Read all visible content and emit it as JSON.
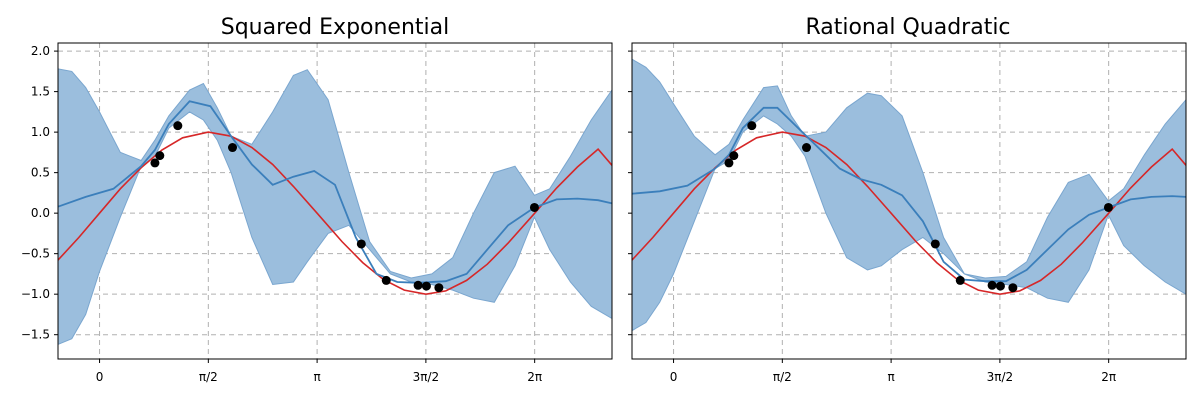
{
  "chart_data": [
    {
      "type": "line",
      "title": "Squared Exponential",
      "x_unit": "radians",
      "xlim": [
        -0.6,
        7.4
      ],
      "ylim": [
        -1.8,
        2.1
      ],
      "xticks": [
        0,
        1.5708,
        3.1416,
        4.7124,
        6.2832
      ],
      "xtick_labels": [
        "0",
        "π/2",
        "π",
        "3π/2",
        "2π"
      ],
      "yticks": [
        -1.5,
        -1.0,
        -0.5,
        0.0,
        0.5,
        1.0,
        1.5,
        2.0
      ],
      "ytick_labels": [
        "−1.5",
        "−1.0",
        "−0.5",
        "0.0",
        "0.5",
        "1.0",
        "1.5",
        "2.0"
      ],
      "grid": true,
      "colors": {
        "true_function": "#d62728",
        "mean": "#3b7fbb",
        "band": "#9bbedd",
        "points": "#000000"
      },
      "true_function": {
        "x": [
          -0.6,
          -0.3,
          0.0,
          0.3,
          0.6,
          0.9,
          1.2,
          1.5708,
          1.9,
          2.2,
          2.5,
          2.8,
          3.1416,
          3.5,
          3.8,
          4.1,
          4.4,
          4.7124,
          5.0,
          5.3,
          5.6,
          5.9,
          6.2832,
          6.6,
          6.9,
          7.2,
          7.4
        ],
        "y": [
          -0.58,
          -0.3,
          0.0,
          0.3,
          0.56,
          0.78,
          0.93,
          1.0,
          0.95,
          0.81,
          0.6,
          0.33,
          0.0,
          -0.35,
          -0.61,
          -0.82,
          -0.95,
          -1.0,
          -0.96,
          -0.83,
          -0.63,
          -0.37,
          0.0,
          0.31,
          0.57,
          0.79,
          0.59
        ]
      },
      "mean": {
        "x": [
          -0.6,
          -0.2,
          0.2,
          0.6,
          0.8,
          1.0,
          1.3,
          1.6,
          1.9,
          2.2,
          2.5,
          2.8,
          3.1,
          3.4,
          3.7,
          4.0,
          4.3,
          4.6,
          5.0,
          5.3,
          5.6,
          5.9,
          6.28,
          6.6,
          6.9,
          7.2,
          7.4
        ],
        "y": [
          0.08,
          0.2,
          0.3,
          0.58,
          0.78,
          1.1,
          1.38,
          1.32,
          0.95,
          0.6,
          0.35,
          0.45,
          0.52,
          0.35,
          -0.3,
          -0.75,
          -0.85,
          -0.86,
          -0.84,
          -0.75,
          -0.45,
          -0.15,
          0.07,
          0.17,
          0.18,
          0.16,
          0.12
        ]
      },
      "band_upper": {
        "x": [
          -0.6,
          -0.4,
          -0.2,
          0.0,
          0.3,
          0.6,
          0.8,
          1.0,
          1.3,
          1.5,
          1.7,
          1.9,
          2.2,
          2.5,
          2.8,
          3.0,
          3.3,
          3.6,
          3.9,
          4.2,
          4.5,
          4.8,
          5.1,
          5.4,
          5.7,
          6.0,
          6.28,
          6.5,
          6.8,
          7.1,
          7.4
        ],
        "y": [
          1.78,
          1.75,
          1.55,
          1.25,
          0.75,
          0.65,
          0.9,
          1.2,
          1.52,
          1.6,
          1.3,
          0.95,
          0.85,
          1.25,
          1.7,
          1.77,
          1.4,
          0.5,
          -0.35,
          -0.72,
          -0.8,
          -0.75,
          -0.55,
          0.0,
          0.5,
          0.58,
          0.22,
          0.3,
          0.7,
          1.15,
          1.52
        ]
      },
      "band_lower": {
        "x": [
          -0.6,
          -0.4,
          -0.2,
          0.0,
          0.3,
          0.6,
          0.8,
          1.0,
          1.3,
          1.5,
          1.7,
          1.9,
          2.2,
          2.5,
          2.8,
          3.0,
          3.3,
          3.6,
          3.9,
          4.2,
          4.5,
          4.8,
          5.1,
          5.4,
          5.7,
          6.0,
          6.28,
          6.5,
          6.8,
          7.1,
          7.4
        ],
        "y": [
          -1.62,
          -1.55,
          -1.25,
          -0.72,
          -0.05,
          0.58,
          0.7,
          1.05,
          1.25,
          1.15,
          0.9,
          0.5,
          -0.3,
          -0.88,
          -0.85,
          -0.6,
          -0.25,
          -0.15,
          -0.45,
          -0.75,
          -0.85,
          -0.88,
          -0.95,
          -1.05,
          -1.1,
          -0.65,
          -0.05,
          -0.45,
          -0.85,
          -1.15,
          -1.3
        ]
      },
      "points": {
        "x": [
          0.8,
          0.87,
          1.13,
          1.92,
          3.78,
          4.14,
          4.6,
          4.72,
          4.9,
          6.28
        ],
        "y": [
          0.62,
          0.71,
          1.08,
          0.81,
          -0.38,
          -0.83,
          -0.89,
          -0.9,
          -0.92,
          0.07
        ]
      }
    },
    {
      "type": "line",
      "title": "Rational Quadratic",
      "x_unit": "radians",
      "xlim": [
        -0.6,
        7.4
      ],
      "ylim": [
        -1.8,
        2.1
      ],
      "xticks": [
        0,
        1.5708,
        3.1416,
        4.7124,
        6.2832
      ],
      "xtick_labels": [
        "0",
        "π/2",
        "π",
        "3π/2",
        "2π"
      ],
      "yticks": [
        -1.5,
        -1.0,
        -0.5,
        0.0,
        0.5,
        1.0,
        1.5,
        2.0
      ],
      "ytick_labels": [],
      "grid": true,
      "colors": {
        "true_function": "#d62728",
        "mean": "#3b7fbb",
        "band": "#9bbedd",
        "points": "#000000"
      },
      "true_function": {
        "x": [
          -0.6,
          -0.3,
          0.0,
          0.3,
          0.6,
          0.9,
          1.2,
          1.5708,
          1.9,
          2.2,
          2.5,
          2.8,
          3.1416,
          3.5,
          3.8,
          4.1,
          4.4,
          4.7124,
          5.0,
          5.3,
          5.6,
          5.9,
          6.2832,
          6.6,
          6.9,
          7.2,
          7.4
        ],
        "y": [
          -0.58,
          -0.3,
          0.0,
          0.3,
          0.56,
          0.78,
          0.93,
          1.0,
          0.95,
          0.81,
          0.6,
          0.33,
          0.0,
          -0.35,
          -0.61,
          -0.82,
          -0.95,
          -1.0,
          -0.96,
          -0.83,
          -0.63,
          -0.37,
          0.0,
          0.31,
          0.57,
          0.79,
          0.59
        ]
      },
      "mean": {
        "x": [
          -0.6,
          -0.2,
          0.2,
          0.6,
          0.8,
          1.0,
          1.3,
          1.5,
          1.8,
          2.1,
          2.4,
          2.7,
          3.0,
          3.3,
          3.6,
          3.9,
          4.2,
          4.5,
          4.8,
          5.1,
          5.4,
          5.7,
          6.0,
          6.28,
          6.6,
          6.9,
          7.2,
          7.4
        ],
        "y": [
          0.24,
          0.27,
          0.34,
          0.55,
          0.72,
          1.05,
          1.3,
          1.3,
          1.05,
          0.8,
          0.55,
          0.42,
          0.35,
          0.22,
          -0.1,
          -0.6,
          -0.82,
          -0.84,
          -0.84,
          -0.7,
          -0.45,
          -0.2,
          -0.02,
          0.07,
          0.17,
          0.2,
          0.21,
          0.2
        ]
      },
      "band_upper": {
        "x": [
          -0.6,
          -0.4,
          -0.2,
          0.0,
          0.3,
          0.6,
          0.8,
          1.0,
          1.3,
          1.5,
          1.7,
          1.9,
          2.2,
          2.5,
          2.8,
          3.0,
          3.3,
          3.6,
          3.9,
          4.2,
          4.5,
          4.8,
          5.1,
          5.4,
          5.7,
          6.0,
          6.28,
          6.5,
          6.8,
          7.1,
          7.4
        ],
        "y": [
          1.9,
          1.8,
          1.62,
          1.35,
          0.95,
          0.72,
          0.85,
          1.15,
          1.55,
          1.57,
          1.2,
          0.95,
          1.0,
          1.3,
          1.48,
          1.45,
          1.2,
          0.5,
          -0.3,
          -0.75,
          -0.8,
          -0.78,
          -0.6,
          -0.05,
          0.38,
          0.48,
          0.15,
          0.3,
          0.72,
          1.1,
          1.4
        ]
      },
      "band_lower": {
        "x": [
          -0.6,
          -0.4,
          -0.2,
          0.0,
          0.3,
          0.6,
          0.8,
          1.0,
          1.3,
          1.5,
          1.7,
          1.9,
          2.2,
          2.5,
          2.8,
          3.0,
          3.3,
          3.6,
          3.9,
          4.2,
          4.5,
          4.8,
          5.1,
          5.4,
          5.7,
          6.0,
          6.28,
          6.5,
          6.8,
          7.1,
          7.4
        ],
        "y": [
          -1.45,
          -1.35,
          -1.1,
          -0.75,
          -0.1,
          0.55,
          0.65,
          1.0,
          1.2,
          1.1,
          0.95,
          0.7,
          0.0,
          -0.55,
          -0.7,
          -0.65,
          -0.45,
          -0.3,
          -0.5,
          -0.75,
          -0.85,
          -0.88,
          -0.92,
          -1.05,
          -1.1,
          -0.7,
          -0.02,
          -0.4,
          -0.65,
          -0.85,
          -1.0
        ]
      },
      "points": {
        "x": [
          0.8,
          0.87,
          1.13,
          1.92,
          3.78,
          4.14,
          4.6,
          4.72,
          4.9,
          6.28
        ],
        "y": [
          0.62,
          0.71,
          1.08,
          0.81,
          -0.38,
          -0.83,
          -0.89,
          -0.9,
          -0.92,
          0.07
        ]
      }
    }
  ]
}
